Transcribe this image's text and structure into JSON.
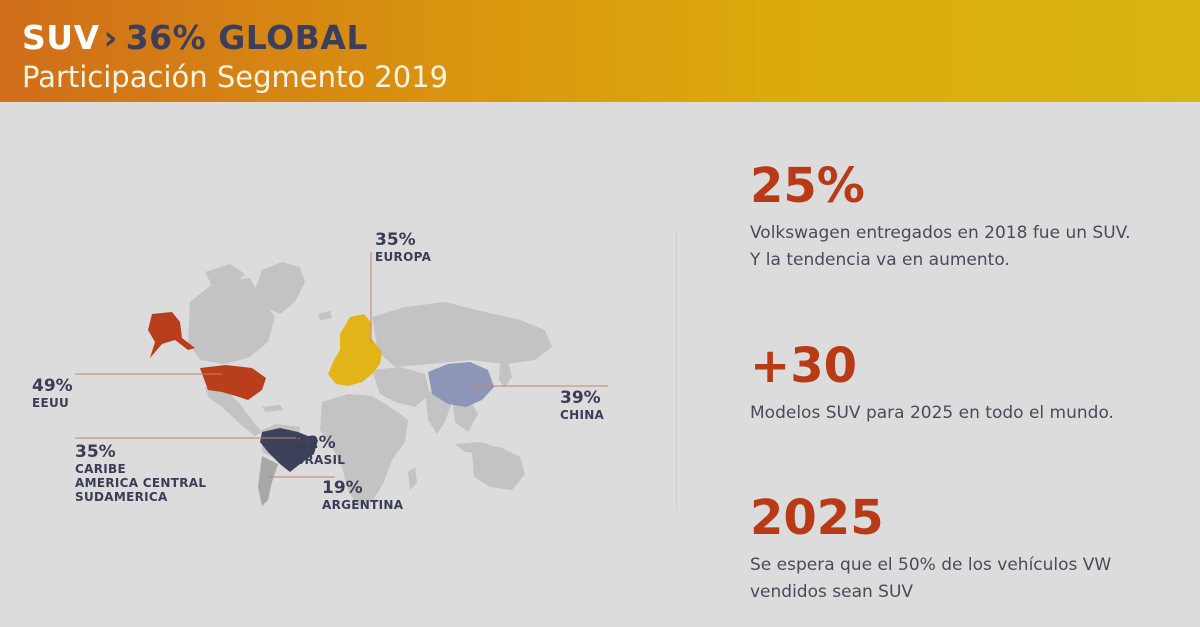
{
  "header": {
    "title_part1": "SUV",
    "chevron": "›",
    "title_part2": "36% GLOBAL",
    "subtitle": "Participación Segmento 2019"
  },
  "map": {
    "labels": [
      {
        "id": "europa",
        "pct": "35%",
        "name": "EUROPA"
      },
      {
        "id": "eeuu",
        "pct": "49%",
        "name": "EEUU"
      },
      {
        "id": "china",
        "pct": "39%",
        "name": "CHINA"
      },
      {
        "id": "caribe",
        "pct": "35%",
        "name_lines": [
          "CARIBE",
          "AMERICA CENTRAL",
          "SUDAMERICA"
        ]
      },
      {
        "id": "brasil",
        "pct": "22%",
        "name": "BRASIL"
      },
      {
        "id": "argentina",
        "pct": "19%",
        "name": "ARGENTINA"
      }
    ],
    "colors": {
      "land": "#c3c3c3",
      "usa": "#b83e1c",
      "europe": "#e2b418",
      "china": "#8d95b8",
      "brazil": "#3b4259"
    }
  },
  "stats": [
    {
      "big": "25%",
      "lines": [
        "Volkswagen entregados en 2018 fue un SUV.",
        "Y la tendencia va en aumento."
      ]
    },
    {
      "big": "+30",
      "lines": [
        "Modelos SUV para 2025 en todo el mundo."
      ]
    },
    {
      "big": "2025",
      "lines": [
        "Se espera que el 50% de los vehículos VW",
        "vendidos sean SUV"
      ]
    }
  ],
  "colors": {
    "header_start": "#d06d1a",
    "header_end": "#d7b412",
    "accent_red": "#b93a16",
    "dark_navy": "#3c3f5c",
    "background": "#dcdcdc"
  }
}
